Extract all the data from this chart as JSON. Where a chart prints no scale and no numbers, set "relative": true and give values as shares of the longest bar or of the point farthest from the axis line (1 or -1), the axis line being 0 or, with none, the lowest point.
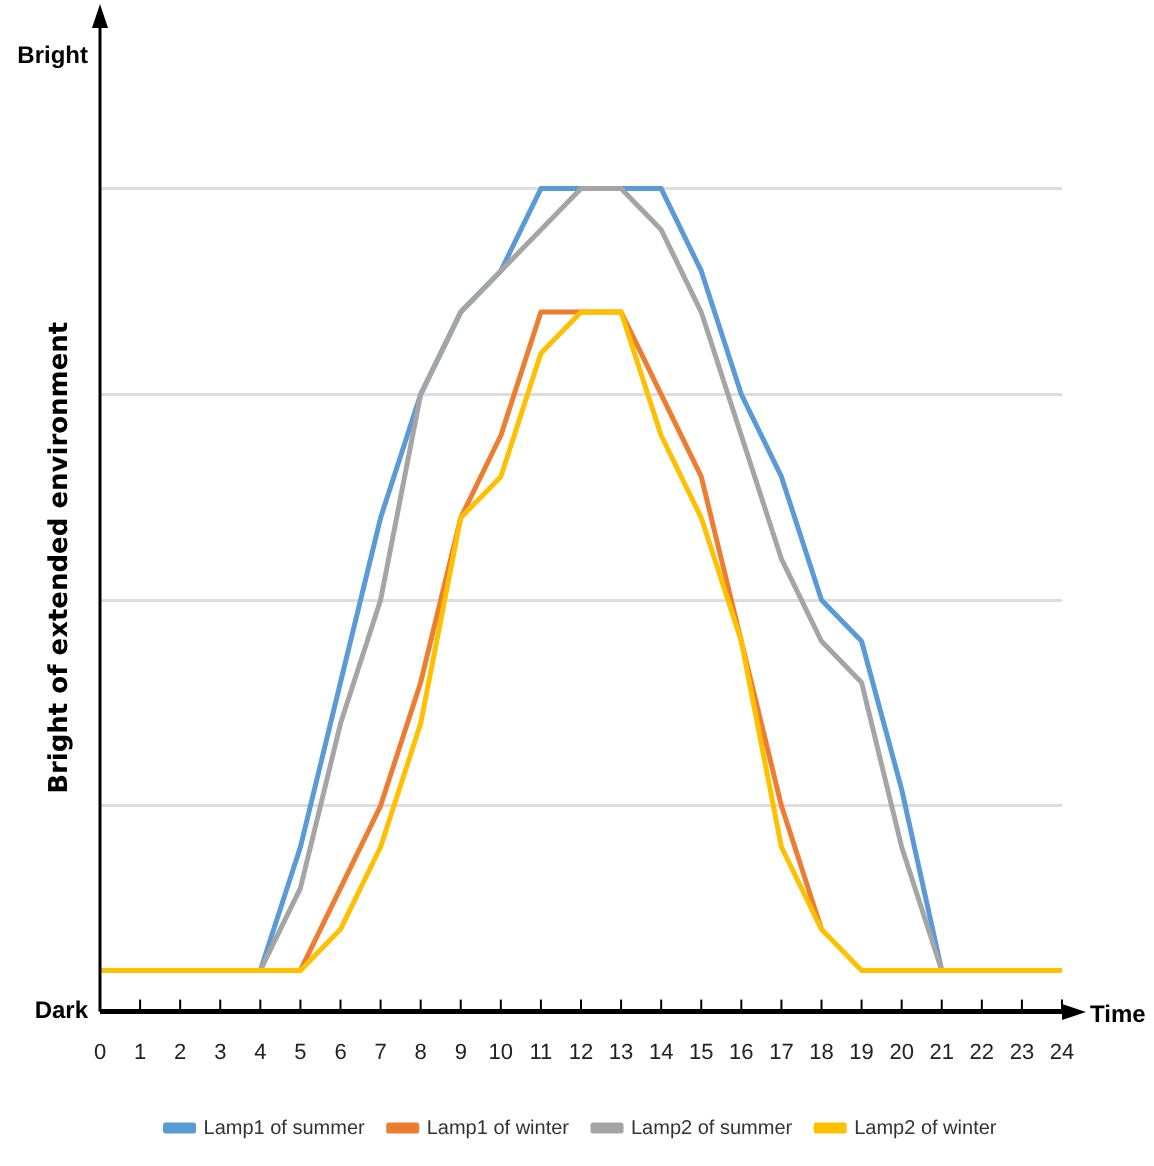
{
  "chart_data": {
    "type": "line",
    "relative": true,
    "xlabel": "Time",
    "ylabel": "Bright of extended environment",
    "annotations": [
      "Bright",
      "Dark"
    ],
    "x": [
      0,
      1,
      2,
      3,
      4,
      5,
      6,
      7,
      8,
      9,
      10,
      11,
      12,
      13,
      14,
      15,
      16,
      17,
      18,
      19,
      20,
      21,
      22,
      23,
      24
    ],
    "xlim": [
      0,
      24
    ],
    "xticks": [
      0,
      1,
      2,
      3,
      4,
      5,
      6,
      7,
      8,
      9,
      10,
      11,
      12,
      13,
      14,
      15,
      16,
      17,
      18,
      19,
      20,
      21,
      22,
      23,
      24
    ],
    "grid": "y",
    "legend": "bottom",
    "marker": "none",
    "line_style": "solid",
    "series": [
      {
        "name": "Lamp1 of summer",
        "color": "#5b9bd5",
        "values": [
          null,
          null,
          null,
          null,
          0.05,
          0.2,
          0.4,
          0.6,
          0.75,
          0.85,
          0.9,
          1,
          1,
          1,
          1,
          0.9,
          0.75,
          0.65,
          0.5,
          0.45,
          0.27,
          0.05,
          null,
          null,
          null
        ]
      },
      {
        "name": "Lamp1 of winter",
        "color": "#ed7d31",
        "values": [
          null,
          null,
          null,
          null,
          null,
          0.05,
          0.15,
          0.25,
          0.4,
          0.6,
          0.7,
          0.85,
          0.85,
          0.85,
          0.75,
          0.65,
          0.45,
          0.25,
          0.1,
          null,
          null,
          null,
          null,
          null,
          null
        ]
      },
      {
        "name": "Lamp2 of summer",
        "color": "#a5a5a5",
        "values": [
          null,
          null,
          null,
          null,
          0.05,
          0.15,
          0.35,
          0.5,
          0.75,
          0.85,
          0.9,
          0.95,
          1,
          1,
          0.95,
          0.85,
          0.7,
          0.55,
          0.45,
          0.4,
          0.2,
          0.05,
          null,
          null,
          null
        ]
      },
      {
        "name": "Lamp2 of winter",
        "color": "#ffc000",
        "values": [
          0.05,
          0.05,
          0.05,
          0.05,
          0.05,
          0.05,
          0.1,
          0.2,
          0.35,
          0.6,
          0.65,
          0.8,
          0.85,
          0.85,
          0.7,
          0.6,
          0.45,
          0.2,
          0.1,
          0.05,
          0.05,
          0.05,
          0.05,
          0.05,
          0.05
        ]
      }
    ]
  }
}
